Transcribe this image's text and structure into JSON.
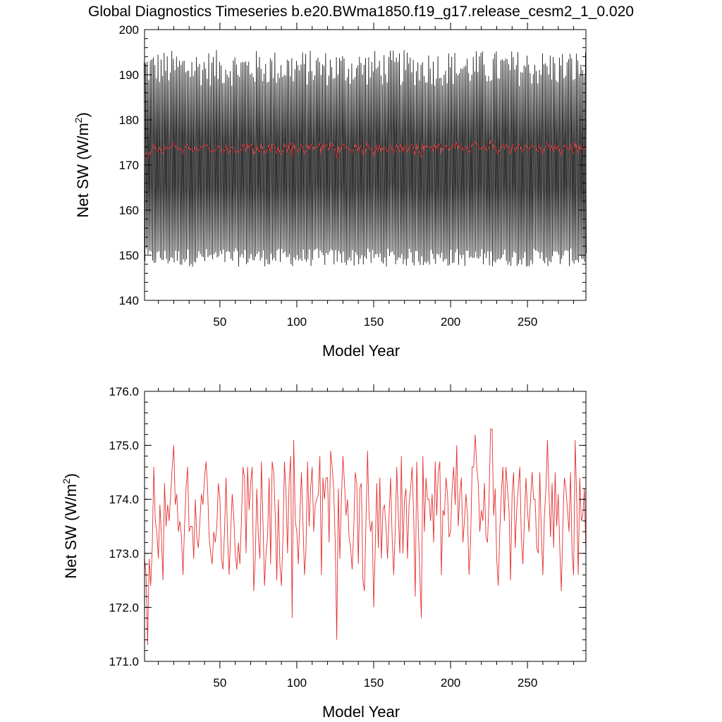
{
  "title": "Global Diagnostics Timeseries b.e20.BWma1850.f19_g17.release_cesm2_1_0.020",
  "colors": {
    "monthly": "#000000",
    "annual": "#e53030"
  },
  "chart_data": [
    {
      "type": "line",
      "xlabel": "Model Year",
      "ylabel_main": "Net SW (W/m",
      "ylabel_sup": "2",
      "ylabel_close": ")",
      "xlim": [
        1,
        288
      ],
      "ylim": [
        140,
        200
      ],
      "xticks": [
        50,
        100,
        150,
        200,
        250
      ],
      "xtick_labels": [
        "50",
        "100",
        "150",
        "200",
        "250"
      ],
      "yticks": [
        140,
        150,
        160,
        170,
        180,
        190,
        200
      ],
      "ytick_labels": [
        "140",
        "150",
        "160",
        "170",
        "180",
        "190",
        "200"
      ],
      "series": [
        {
          "kind": "monthly seasonal cycle",
          "min_range": [
            147.5,
            151.5
          ],
          "max_range": [
            187.5,
            195.5
          ],
          "mean": 173.7
        },
        {
          "kind": "annual mean",
          "ref": "annual_mean"
        }
      ]
    },
    {
      "type": "line",
      "xlabel": "Model Year",
      "ylabel_main": "Net SW (W/m",
      "ylabel_sup": "2",
      "ylabel_close": ")",
      "xlim": [
        1,
        288
      ],
      "ylim": [
        171.0,
        176.0
      ],
      "xticks": [
        50,
        100,
        150,
        200,
        250
      ],
      "xtick_labels": [
        "50",
        "100",
        "150",
        "200",
        "250"
      ],
      "yticks": [
        171.0,
        172.0,
        173.0,
        174.0,
        175.0,
        176.0
      ],
      "ytick_labels": [
        "171.0",
        "172.0",
        "173.0",
        "174.0",
        "175.0",
        "176.0"
      ],
      "series": [
        {
          "kind": "annual mean",
          "ref": "annual_mean"
        }
      ]
    }
  ],
  "annual_mean": {
    "x_start": 1,
    "values": [
      172.9,
      172.6,
      171.3,
      172.9,
      172.4,
      173.1,
      174.6,
      173.6,
      173.4,
      172.9,
      173.9,
      173.3,
      172.5,
      174.3,
      173.5,
      173.9,
      173.6,
      174.1,
      174.6,
      175.0,
      173.9,
      174.1,
      173.4,
      173.6,
      173.3,
      172.6,
      173.5,
      174.2,
      174.6,
      173.4,
      173.5,
      173.5,
      172.9,
      174.0,
      173.3,
      173.1,
      173.6,
      174.1,
      173.9,
      174.4,
      174.7,
      174.2,
      173.3,
      173.0,
      172.8,
      173.4,
      173.2,
      173.5,
      174.3,
      174.0,
      172.9,
      172.7,
      173.4,
      174.4,
      173.3,
      172.6,
      173.4,
      174.1,
      173.7,
      173.0,
      172.7,
      173.2,
      172.8,
      173.6,
      174.6,
      174.4,
      173.0,
      174.6,
      173.8,
      174.3,
      174.6,
      172.3,
      172.9,
      174.2,
      173.3,
      172.9,
      174.7,
      173.6,
      172.4,
      173.0,
      173.3,
      174.4,
      172.8,
      174.7,
      174.5,
      173.7,
      172.5,
      174.0,
      172.8,
      172.4,
      173.3,
      174.7,
      174.1,
      173.0,
      174.3,
      174.8,
      171.8,
      175.1,
      173.6,
      173.4,
      172.8,
      173.7,
      174.5,
      173.6,
      172.6,
      173.1,
      174.7,
      173.5,
      174.2,
      174.6,
      173.4,
      173.9,
      174.0,
      174.1,
      174.8,
      172.6,
      174.4,
      174.0,
      174.4,
      174.4,
      173.2,
      174.9,
      174.6,
      174.2,
      173.2,
      171.4,
      174.2,
      172.9,
      174.0,
      174.8,
      174.3,
      173.7,
      174.0,
      173.3,
      173.1,
      172.7,
      173.4,
      174.5,
      174.3,
      172.8,
      174.2,
      174.3,
      172.5,
      172.3,
      173.6,
      174.9,
      173.7,
      173.4,
      173.6,
      172.0,
      173.1,
      174.3,
      173.1,
      174.4,
      172.9,
      173.8,
      173.9,
      173.5,
      172.9,
      173.7,
      174.4,
      173.3,
      172.6,
      173.4,
      174.6,
      173.7,
      173.0,
      174.8,
      173.0,
      174.0,
      174.2,
      172.9,
      173.9,
      174.2,
      174.6,
      173.7,
      172.2,
      174.7,
      173.5,
      172.6,
      171.8,
      174.8,
      173.4,
      174.4,
      174.0,
      174.0,
      173.6,
      174.1,
      173.2,
      174.7,
      173.7,
      174.5,
      174.7,
      172.6,
      173.8,
      173.7,
      174.4,
      174.1,
      173.3,
      173.4,
      174.2,
      174.6,
      173.9,
      175.0,
      173.5,
      174.1,
      174.4,
      173.2,
      173.6,
      174.1,
      173.7,
      172.6,
      173.2,
      174.6,
      174.6,
      175.2,
      174.6,
      174.3,
      173.4,
      173.8,
      173.6,
      174.3,
      173.3,
      173.2,
      174.0,
      175.3,
      175.3,
      173.7,
      174.2,
      172.9,
      172.4,
      173.4,
      174.1,
      174.6,
      173.6,
      174.6,
      174.2,
      173.8,
      172.5,
      174.1,
      174.5,
      173.1,
      173.8,
      174.2,
      174.6,
      173.3,
      172.8,
      173.6,
      174.4,
      173.8,
      173.4,
      174.0,
      174.5,
      174.0,
      174.0,
      173.1,
      173.0,
      174.5,
      173.4,
      172.6,
      173.7,
      174.2,
      175.1,
      174.1,
      173.3,
      174.3,
      173.1,
      174.5,
      173.5,
      174.1,
      173.1,
      172.3,
      173.5,
      174.4,
      174.2,
      173.8,
      173.4,
      174.5,
      173.0,
      172.6,
      175.1,
      174.0,
      172.6,
      174.4,
      173.6,
      173.7,
      174.2,
      173.0
    ]
  }
}
